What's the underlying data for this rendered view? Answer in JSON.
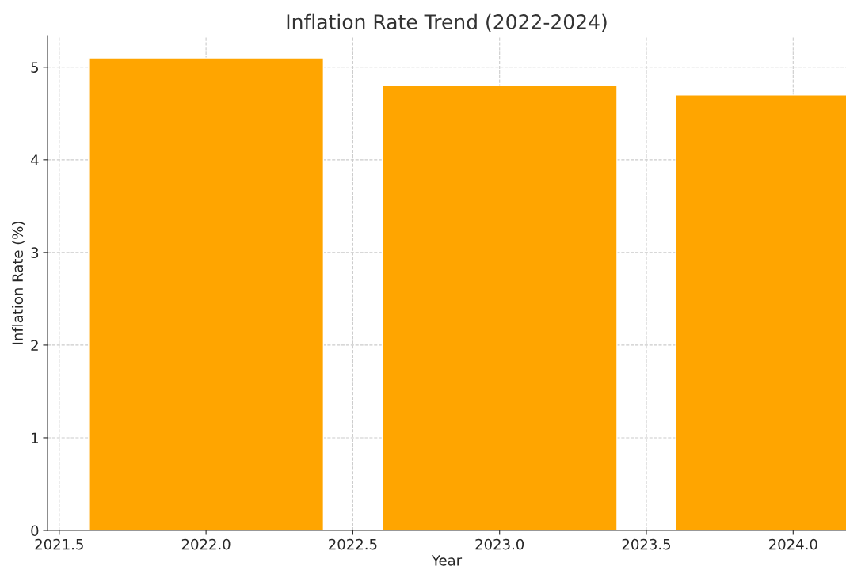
{
  "chart_data": {
    "type": "bar",
    "title": "Inflation Rate Trend (2022-2024)",
    "xlabel": "Year",
    "ylabel": "Inflation Rate (%)",
    "x": [
      2022,
      2023,
      2024
    ],
    "series": [
      {
        "color": "#ffa500",
        "values": [
          5.1,
          4.8,
          4.7
        ]
      }
    ],
    "xlim": [
      2021.46,
      2024.18
    ],
    "xticks": [
      {
        "value": 2021.5,
        "label": "2021.5"
      },
      {
        "value": 2022,
        "label": "2022.0"
      },
      {
        "value": 2022.5,
        "label": "2022.5"
      },
      {
        "value": 2023,
        "label": "2023.0"
      },
      {
        "value": 2023.5,
        "label": "2023.5"
      },
      {
        "value": 2024,
        "label": "2024.0"
      }
    ],
    "ylim": [
      0,
      5.34
    ],
    "yticks": [
      0,
      1,
      2,
      3,
      4,
      5
    ],
    "grid": true
  }
}
